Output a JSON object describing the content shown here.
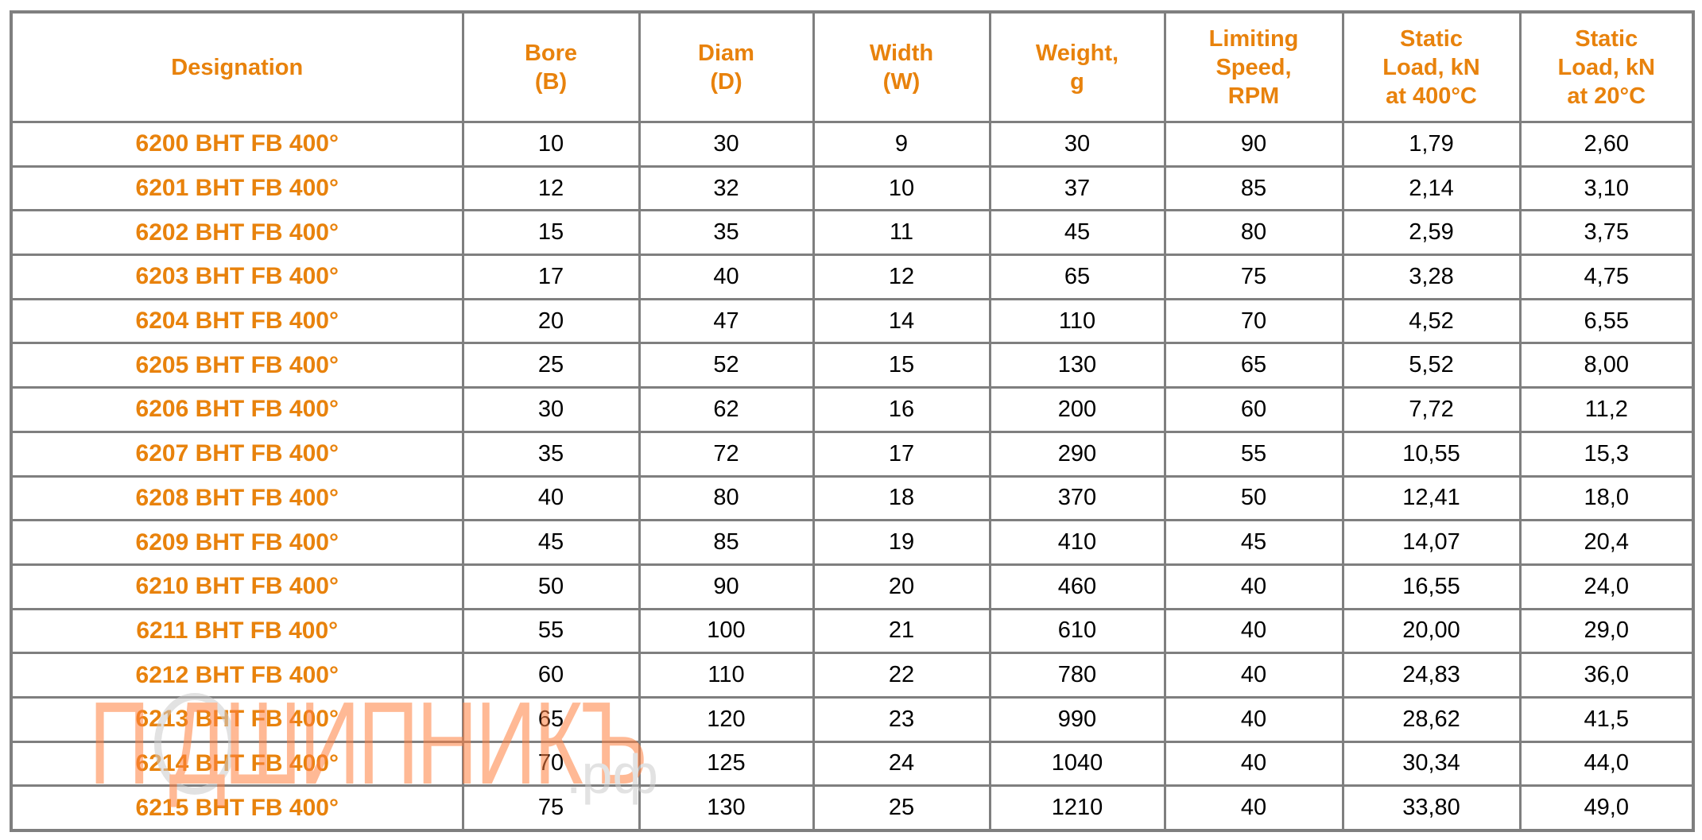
{
  "table": {
    "headers": [
      [
        "Designation"
      ],
      [
        "Bore",
        "(B)"
      ],
      [
        "Diam",
        "(D)"
      ],
      [
        "Width",
        "(W)"
      ],
      [
        "Weight,",
        "g"
      ],
      [
        "Limiting",
        "Speed,",
        "RPM"
      ],
      [
        "Static",
        "Load, kN",
        "at 400°C"
      ],
      [
        "Static",
        "Load, kN",
        "at 20°C"
      ]
    ],
    "rows": [
      [
        "6200 BHT FB 400°",
        "10",
        "30",
        "9",
        "30",
        "90",
        "1,79",
        "2,60"
      ],
      [
        "6201 BHT FB 400°",
        "12",
        "32",
        "10",
        "37",
        "85",
        "2,14",
        "3,10"
      ],
      [
        "6202 BHT FB 400°",
        "15",
        "35",
        "11",
        "45",
        "80",
        "2,59",
        "3,75"
      ],
      [
        "6203 BHT FB 400°",
        "17",
        "40",
        "12",
        "65",
        "75",
        "3,28",
        "4,75"
      ],
      [
        "6204 BHT FB 400°",
        "20",
        "47",
        "14",
        "110",
        "70",
        "4,52",
        "6,55"
      ],
      [
        "6205 BHT FB 400°",
        "25",
        "52",
        "15",
        "130",
        "65",
        "5,52",
        "8,00"
      ],
      [
        "6206 BHT FB 400°",
        "30",
        "62",
        "16",
        "200",
        "60",
        "7,72",
        "11,2"
      ],
      [
        "6207 BHT FB 400°",
        "35",
        "72",
        "17",
        "290",
        "55",
        "10,55",
        "15,3"
      ],
      [
        "6208 BHT FB 400°",
        "40",
        "80",
        "18",
        "370",
        "50",
        "12,41",
        "18,0"
      ],
      [
        "6209 BHT FB 400°",
        "45",
        "85",
        "19",
        "410",
        "45",
        "14,07",
        "20,4"
      ],
      [
        "6210 BHT FB 400°",
        "50",
        "90",
        "20",
        "460",
        "40",
        "16,55",
        "24,0"
      ],
      [
        "6211 BHT FB 400°",
        "55",
        "100",
        "21",
        "610",
        "40",
        "20,00",
        "29,0"
      ],
      [
        "6212 BHT FB 400°",
        "60",
        "110",
        "22",
        "780",
        "40",
        "24,83",
        "36,0"
      ],
      [
        "6213 BHT FB 400°",
        "65",
        "120",
        "23",
        "990",
        "40",
        "28,62",
        "41,5"
      ],
      [
        "6214 BHT FB 400°",
        "70",
        "125",
        "24",
        "1040",
        "40",
        "30,34",
        "44,0"
      ],
      [
        "6215 BHT FB 400°",
        "75",
        "130",
        "25",
        "1210",
        "40",
        "33,80",
        "49,0"
      ]
    ]
  },
  "watermark": {
    "text": "П ДШИПНИКЪ",
    "suffix": ".рф"
  },
  "colors": {
    "accent": "#e8820c",
    "border": "#7f7f7f"
  }
}
